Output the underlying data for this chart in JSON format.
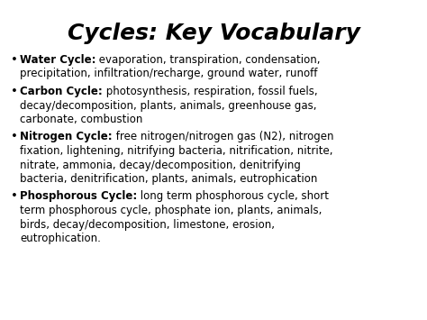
{
  "title": "Cycles: Key Vocabulary",
  "background_color": "#ffffff",
  "text_color": "#000000",
  "title_fontsize": 18,
  "bullet_fontsize": 8.5,
  "bullet_items": [
    {
      "label": "Water Cycle:",
      "text": " evaporation, transpiration, condensation,\nprecipitation, infiltration/recharge, ground water, runoff"
    },
    {
      "label": "Carbon Cycle:",
      "text": " photosynthesis, respiration, fossil fuels,\ndecay/decomposition, plants, animals, greenhouse gas,\ncarbonate, combustion"
    },
    {
      "label": "Nitrogen Cycle:",
      "text": " free nitrogen/nitrogen gas (N2), nitrogen\nfixation, lightening, nitrifying bacteria, nitrification, nitrite,\nnitrate, ammonia, decay/decomposition, denitrifying\nbacteria, denitrification, plants, animals, eutrophication"
    },
    {
      "label": "Phosphorous Cycle:",
      "text": " long term phosphorous cycle, short\nterm phosphorous cycle, phosphate ion, plants, animals,\nbirds, decay/decomposition, limestone, erosion,\neutrophication."
    }
  ]
}
